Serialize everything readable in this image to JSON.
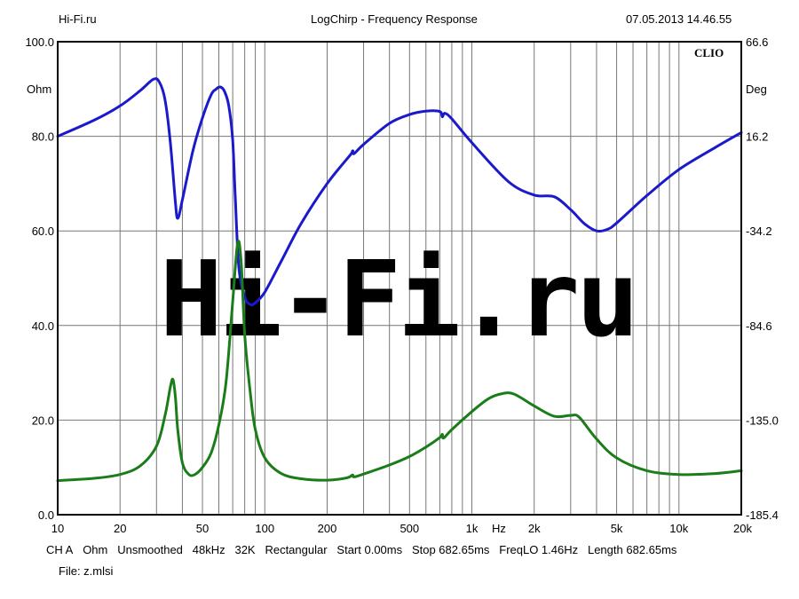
{
  "header": {
    "left": "Hi-Fi.ru",
    "center": "LogChirp - Frequency Response",
    "right": "07.05.2013 14.46.55"
  },
  "brand_label": "CLIO",
  "watermark": "Hi-Fi.ru",
  "footer": {
    "params": [
      "CH A",
      "Ohm",
      "Unsmoothed",
      "48kHz",
      "32K",
      "Rectangular",
      "Start 0.00ms",
      "Stop 682.65ms",
      "FreqLO 1.46Hz",
      "Length 682.65ms"
    ],
    "file": "File: z.mlsi"
  },
  "chart_data": {
    "type": "line",
    "title": "LogChirp - Frequency Response",
    "xlabel": "Hz",
    "x_scale": "log",
    "xlim": [
      10,
      20000
    ],
    "x_ticks": [
      10,
      20,
      50,
      100,
      200,
      500,
      1000,
      2000,
      5000,
      10000,
      20000
    ],
    "x_tick_labels": [
      "10",
      "20",
      "50",
      "100",
      "200",
      "500",
      "1k",
      "2k",
      "5k",
      "10k",
      "20k"
    ],
    "y_left": {
      "label": "Ohm",
      "lim": [
        0,
        100
      ],
      "ticks": [
        "100.0",
        "80.0",
        "60.0",
        "40.0",
        "20.0",
        "0.0"
      ]
    },
    "y_right": {
      "label": "Deg",
      "lim": [
        -185.4,
        66.6
      ],
      "ticks": [
        "66.6",
        "16.2",
        "-34.2",
        "-84.6",
        "-135.0",
        "-185.4"
      ]
    },
    "grid": true,
    "series": [
      {
        "axis": "right",
        "color": "#1a1acc",
        "points": [
          [
            10,
            16.2
          ],
          [
            15,
            24.8
          ],
          [
            20,
            32.4
          ],
          [
            25,
            40.5
          ],
          [
            29,
            46.6
          ],
          [
            31,
            45.0
          ],
          [
            33,
            35.6
          ],
          [
            35,
            12.8
          ],
          [
            37,
            -18.6
          ],
          [
            38,
            -27.5
          ],
          [
            40,
            -17.7
          ],
          [
            45,
            8.7
          ],
          [
            50,
            26.0
          ],
          [
            55,
            38.2
          ],
          [
            58,
            41.2
          ],
          [
            61,
            42.5
          ],
          [
            64,
            40.0
          ],
          [
            67,
            32.4
          ],
          [
            70,
            14.3
          ],
          [
            72,
            -15.9
          ],
          [
            75,
            -54.0
          ],
          [
            80,
            -69.4
          ],
          [
            85,
            -73.4
          ],
          [
            90,
            -72.5
          ],
          [
            100,
            -66.8
          ],
          [
            120,
            -50.4
          ],
          [
            150,
            -30.2
          ],
          [
            200,
            -9.0
          ],
          [
            260,
            6.6
          ],
          [
            265,
            8.3
          ],
          [
            270,
            7.0
          ],
          [
            300,
            11.9
          ],
          [
            400,
            23.1
          ],
          [
            500,
            27.8
          ],
          [
            600,
            29.6
          ],
          [
            700,
            29.4
          ],
          [
            720,
            26.6
          ],
          [
            740,
            28.5
          ],
          [
            800,
            25.5
          ],
          [
            1000,
            12.8
          ],
          [
            1500,
            -7.9
          ],
          [
            2000,
            -15.1
          ],
          [
            2500,
            -16.0
          ],
          [
            3000,
            -22.9
          ],
          [
            3500,
            -30.4
          ],
          [
            4000,
            -34.2
          ],
          [
            4500,
            -33.4
          ],
          [
            5000,
            -30.0
          ],
          [
            7000,
            -15.4
          ],
          [
            10000,
            -1.5
          ],
          [
            15000,
            10.3
          ],
          [
            20000,
            18.2
          ]
        ]
      },
      {
        "axis": "left",
        "color": "#1a7d1a",
        "points": [
          [
            10,
            7.2
          ],
          [
            15,
            7.7
          ],
          [
            20,
            8.5
          ],
          [
            25,
            10.3
          ],
          [
            30,
            14.5
          ],
          [
            33,
            21.0
          ],
          [
            35,
            27.0
          ],
          [
            36,
            28.6
          ],
          [
            37,
            25.0
          ],
          [
            38,
            18.0
          ],
          [
            40,
            11.0
          ],
          [
            43,
            8.5
          ],
          [
            46,
            8.5
          ],
          [
            50,
            10.0
          ],
          [
            55,
            13.0
          ],
          [
            60,
            19.0
          ],
          [
            65,
            28.0
          ],
          [
            70,
            45.0
          ],
          [
            74,
            57.5
          ],
          [
            77,
            53.0
          ],
          [
            80,
            38.0
          ],
          [
            85,
            26.0
          ],
          [
            90,
            18.0
          ],
          [
            100,
            12.0
          ],
          [
            120,
            8.7
          ],
          [
            150,
            7.6
          ],
          [
            200,
            7.3
          ],
          [
            250,
            7.8
          ],
          [
            265,
            8.4
          ],
          [
            270,
            8.0
          ],
          [
            300,
            8.6
          ],
          [
            400,
            10.5
          ],
          [
            500,
            12.3
          ],
          [
            600,
            14.3
          ],
          [
            700,
            16.3
          ],
          [
            720,
            17.0
          ],
          [
            730,
            16.2
          ],
          [
            800,
            18.0
          ],
          [
            1000,
            21.8
          ],
          [
            1200,
            24.5
          ],
          [
            1400,
            25.6
          ],
          [
            1600,
            25.5
          ],
          [
            2000,
            23.0
          ],
          [
            2500,
            20.8
          ],
          [
            3000,
            21.0
          ],
          [
            3300,
            20.6
          ],
          [
            4000,
            16.0
          ],
          [
            5000,
            12.0
          ],
          [
            7000,
            9.3
          ],
          [
            10000,
            8.5
          ],
          [
            15000,
            8.7
          ],
          [
            20000,
            9.3
          ]
        ]
      }
    ]
  }
}
